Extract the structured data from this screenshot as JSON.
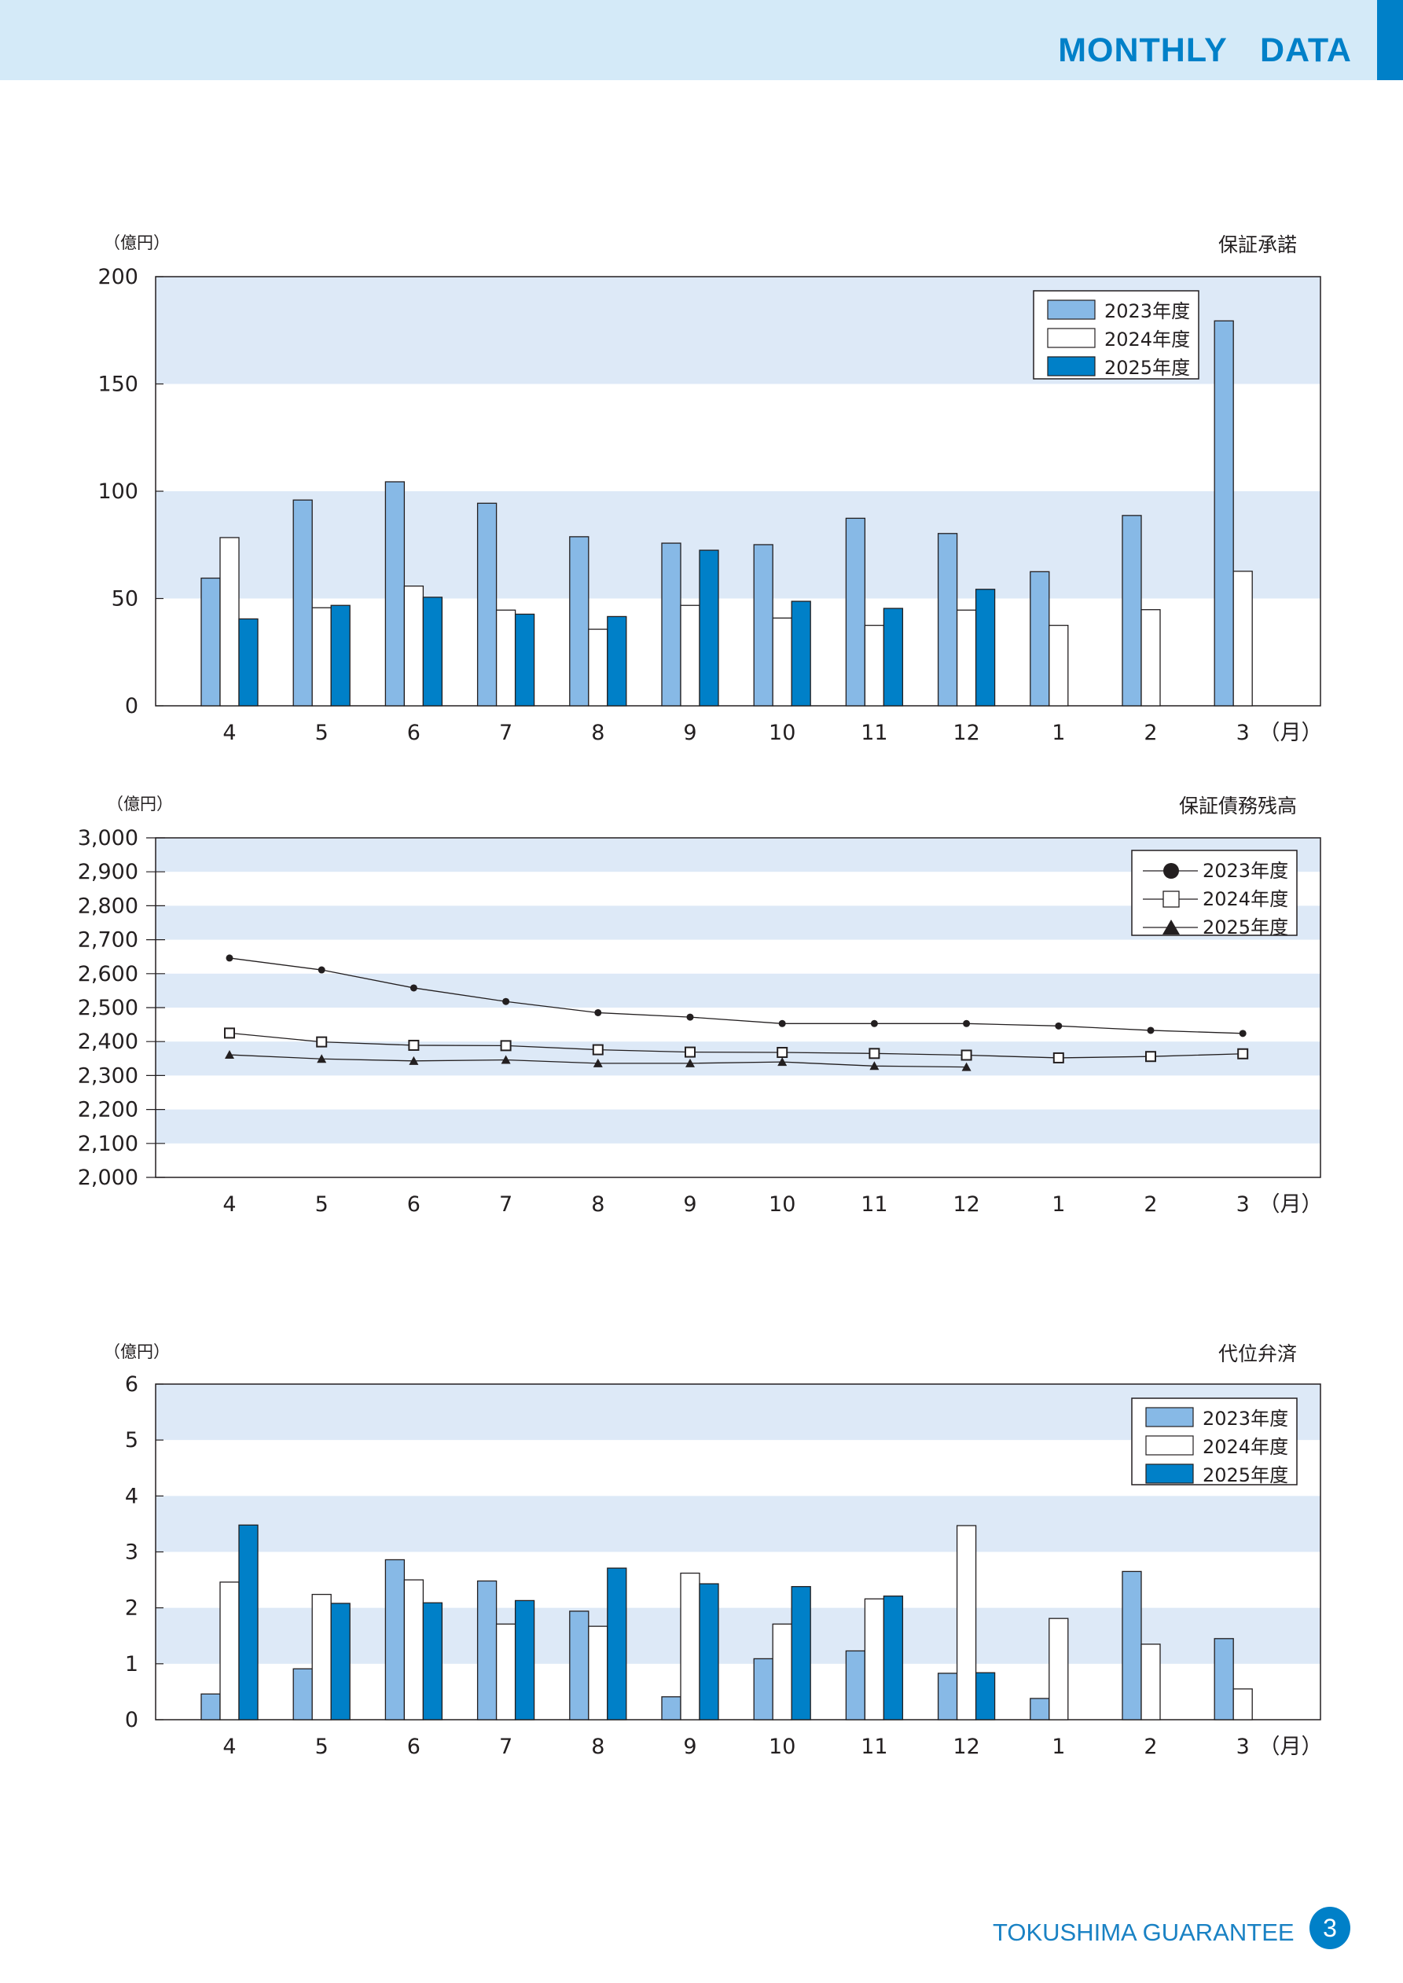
{
  "header": {
    "title": "MONTHLY  DATA"
  },
  "footer": {
    "brand": "TOKUSHIMA GUARANTEE",
    "page_number": "3"
  },
  "colors": {
    "accent": "#0080c8",
    "band": "#dde9f7",
    "s2023": "#87b9e6",
    "s2024": "#ffffff",
    "s2025": "#0080c8"
  },
  "chart_data": [
    {
      "id": "guarantee-approval",
      "type": "bar",
      "title": "保証承諾",
      "ylabel": "（億円）",
      "xlabel": "（月）",
      "ylim": [
        0,
        200
      ],
      "yticks": [
        "0",
        "50",
        "100",
        "150",
        "200"
      ],
      "ytick_values": [
        0,
        50,
        100,
        150,
        200
      ],
      "categories": [
        "4",
        "5",
        "6",
        "7",
        "8",
        "9",
        "10",
        "11",
        "12",
        "1",
        "2",
        "3"
      ],
      "legend_position": "top-right",
      "series": [
        {
          "name": "2023年度",
          "values": [
            59.5,
            95.9,
            104.4,
            94.4,
            78.8,
            75.8,
            75.1,
            87.4,
            80.3,
            62.5,
            88.7,
            179.4
          ]
        },
        {
          "name": "2024年度",
          "values": [
            78.4,
            45.7,
            55.8,
            44.6,
            35.7,
            46.8,
            40.9,
            37.5,
            44.6,
            37.5,
            44.8,
            62.7
          ]
        },
        {
          "name": "2025年度",
          "values": [
            40.5,
            46.8,
            50.6,
            42.7,
            41.6,
            72.5,
            48.7,
            45.4,
            54.3,
            null,
            null,
            null
          ]
        }
      ]
    },
    {
      "id": "guarantee-balance",
      "type": "line",
      "title": "保証債務残高",
      "ylabel": "（億円）",
      "xlabel": "（月）",
      "ylim": [
        2000,
        3000
      ],
      "yticks": [
        "2,000",
        "2,100",
        "2,200",
        "2,300",
        "2,400",
        "2,500",
        "2,600",
        "2,700",
        "2,800",
        "2,900",
        "3,000"
      ],
      "ytick_values": [
        2000,
        2100,
        2200,
        2300,
        2400,
        2500,
        2600,
        2700,
        2800,
        2900,
        3000
      ],
      "categories": [
        "4",
        "5",
        "6",
        "7",
        "8",
        "9",
        "10",
        "11",
        "12",
        "1",
        "2",
        "3"
      ],
      "legend_position": "top-right",
      "series": [
        {
          "name": "2023年度",
          "marker": "circle",
          "values": [
            2646,
            2611,
            2558,
            2518,
            2485,
            2472,
            2453,
            2453,
            2453,
            2446,
            2433,
            2424
          ]
        },
        {
          "name": "2024年度",
          "marker": "square",
          "values": [
            2425,
            2399,
            2389,
            2388,
            2376,
            2369,
            2368,
            2365,
            2360,
            2352,
            2356,
            2364
          ]
        },
        {
          "name": "2025年度",
          "marker": "triangle",
          "values": [
            2361,
            2349,
            2343,
            2346,
            2336,
            2336,
            2340,
            2328,
            2325,
            null,
            null,
            null
          ]
        }
      ]
    },
    {
      "id": "subrogation",
      "type": "bar",
      "title": "代位弁済",
      "ylabel": "（億円）",
      "xlabel": "（月）",
      "ylim": [
        0,
        6
      ],
      "yticks": [
        "0",
        "1",
        "2",
        "3",
        "4",
        "5",
        "6"
      ],
      "ytick_values": [
        0,
        1,
        2,
        3,
        4,
        5,
        6
      ],
      "categories": [
        "4",
        "5",
        "6",
        "7",
        "8",
        "9",
        "10",
        "11",
        "12",
        "1",
        "2",
        "3"
      ],
      "legend_position": "top-right",
      "series": [
        {
          "name": "2023年度",
          "values": [
            0.46,
            0.91,
            2.86,
            2.48,
            1.94,
            0.41,
            1.09,
            1.23,
            0.83,
            0.38,
            2.65,
            1.45
          ]
        },
        {
          "name": "2024年度",
          "values": [
            2.46,
            2.24,
            2.5,
            1.71,
            1.67,
            2.62,
            1.71,
            2.16,
            3.47,
            1.81,
            1.35,
            0.55
          ]
        },
        {
          "name": "2025年度",
          "values": [
            3.48,
            2.08,
            2.09,
            2.13,
            2.71,
            2.43,
            2.38,
            2.21,
            0.84,
            null,
            null,
            null
          ]
        }
      ]
    }
  ]
}
